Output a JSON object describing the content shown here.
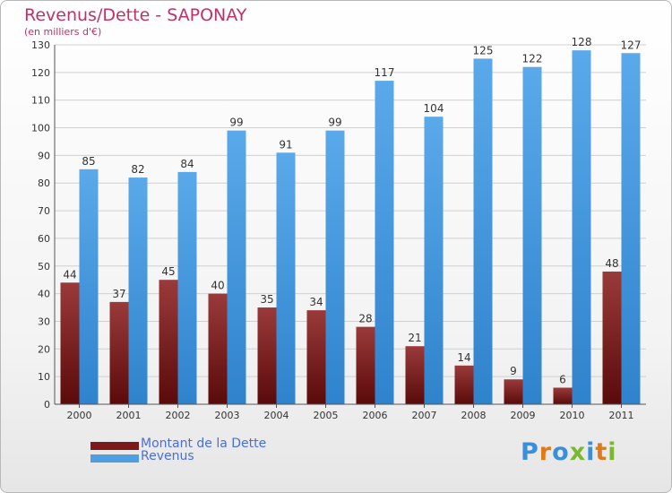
{
  "title": "Revenus/Dette - SAPONAY",
  "subtitle": "(en milliers d'€)",
  "legend": [
    {
      "label": "Montant de la Dette",
      "color": "#7a1a1a"
    },
    {
      "label": "Revenus",
      "color": "#4f9fe0"
    }
  ],
  "logo": {
    "text": "Proxiti",
    "colors": [
      "#3a8fd8",
      "#e07a18",
      "#3a8fd8",
      "#7ab830",
      "#3a8fd8",
      "#e07a18",
      "#7ab830"
    ]
  },
  "chart_data": {
    "type": "bar",
    "categories": [
      "2000",
      "2001",
      "2002",
      "2003",
      "2004",
      "2005",
      "2006",
      "2007",
      "2008",
      "2009",
      "2010",
      "2011"
    ],
    "series": [
      {
        "name": "Montant de la Dette",
        "values": [
          44,
          37,
          45,
          40,
          35,
          34,
          28,
          21,
          14,
          9,
          6,
          48
        ]
      },
      {
        "name": "Revenus",
        "values": [
          85,
          82,
          84,
          99,
          91,
          99,
          117,
          104,
          125,
          122,
          128,
          127
        ]
      }
    ],
    "title": "Revenus/Dette - SAPONAY",
    "ylim": [
      0,
      130
    ],
    "yticks": [
      0,
      10,
      20,
      30,
      40,
      50,
      60,
      70,
      80,
      90,
      100,
      110,
      120,
      130
    ],
    "grid": true,
    "legend_position": "bottom-left"
  }
}
